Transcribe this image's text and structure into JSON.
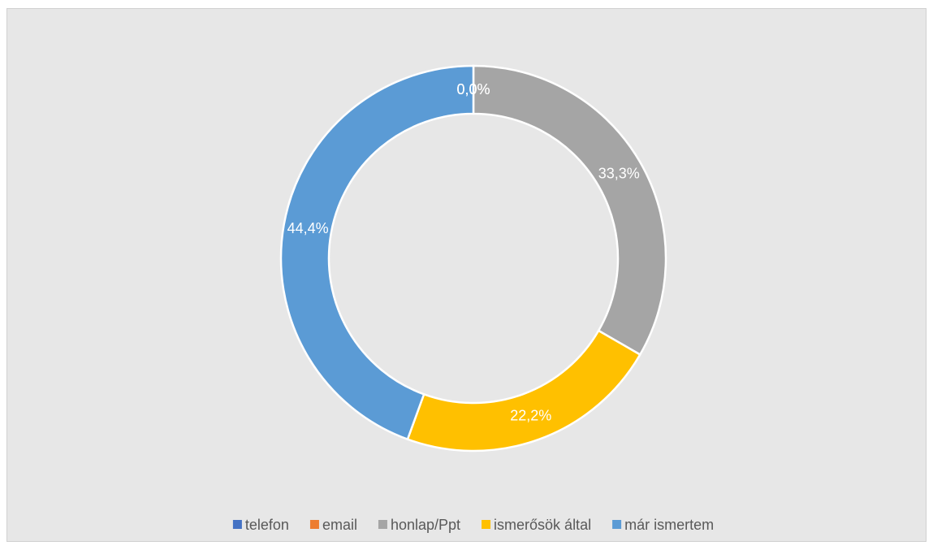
{
  "chart_data": {
    "type": "donut",
    "categories": [
      "telefon",
      "email",
      "honlap/Ppt",
      "ismerősök által",
      "már ismertem"
    ],
    "values": [
      0,
      0,
      33.3,
      22.2,
      44.4
    ],
    "value_labels": [
      "0,0%",
      "0,0%",
      "33,3%",
      "22,2%",
      "44,4%"
    ],
    "colors": [
      "#4472c4",
      "#ed7d31",
      "#a5a5a5",
      "#ffc000",
      "#5b9bd5"
    ],
    "legend": "bottom"
  }
}
